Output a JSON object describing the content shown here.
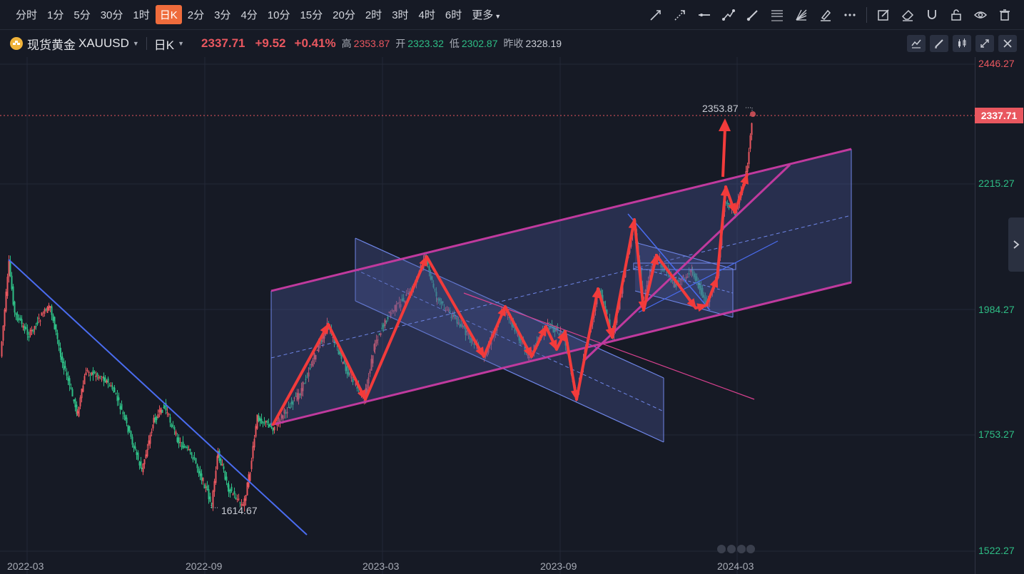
{
  "toolbar": {
    "intervals": [
      "分时",
      "1分",
      "5分",
      "30分",
      "1时",
      "日K",
      "2分",
      "3分",
      "4分",
      "10分",
      "15分",
      "20分",
      "2时",
      "3时",
      "4时",
      "6时"
    ],
    "active_interval": "日K",
    "more_label": "更多",
    "tools": [
      "trend-line-icon",
      "ray-line-icon",
      "horizontal-line-icon",
      "polyline-icon",
      "brush-icon",
      "fibonacci-icon",
      "fan-icon",
      "highlighter-icon",
      "more-dots-icon",
      "edit-note-icon",
      "eraser-icon",
      "magnet-icon",
      "lock-icon",
      "eye-icon",
      "trash-icon"
    ]
  },
  "symbol": {
    "name": "现货黄金",
    "code": "XAUUSD",
    "timeframe": "日K",
    "price": "2337.71",
    "change": "+9.52",
    "change_pct": "+0.41%",
    "high_label": "高",
    "high": "2353.87",
    "open_label": "开",
    "open": "2323.32",
    "low_label": "低",
    "low": "2302.87",
    "prev_close_label": "昨收",
    "prev_close": "2328.19"
  },
  "y_axis": {
    "labels": [
      "2446.27",
      "2215.27",
      "1984.27",
      "1753.27",
      "1522.27"
    ],
    "current_price": "2337.71"
  },
  "x_axis": {
    "labels": [
      "2022-03",
      "2022-09",
      "2023-03",
      "2023-09",
      "2024-03"
    ]
  },
  "annotations": {
    "high_marker": "2353.87",
    "low_marker": "1614.67"
  },
  "colors": {
    "up": "#e9575f",
    "down": "#2ebd85",
    "channel": "#c03a9e",
    "arrows": "#f23b3b",
    "trend_blue": "#4a6cf0",
    "accent": "#ef6c3c"
  }
}
